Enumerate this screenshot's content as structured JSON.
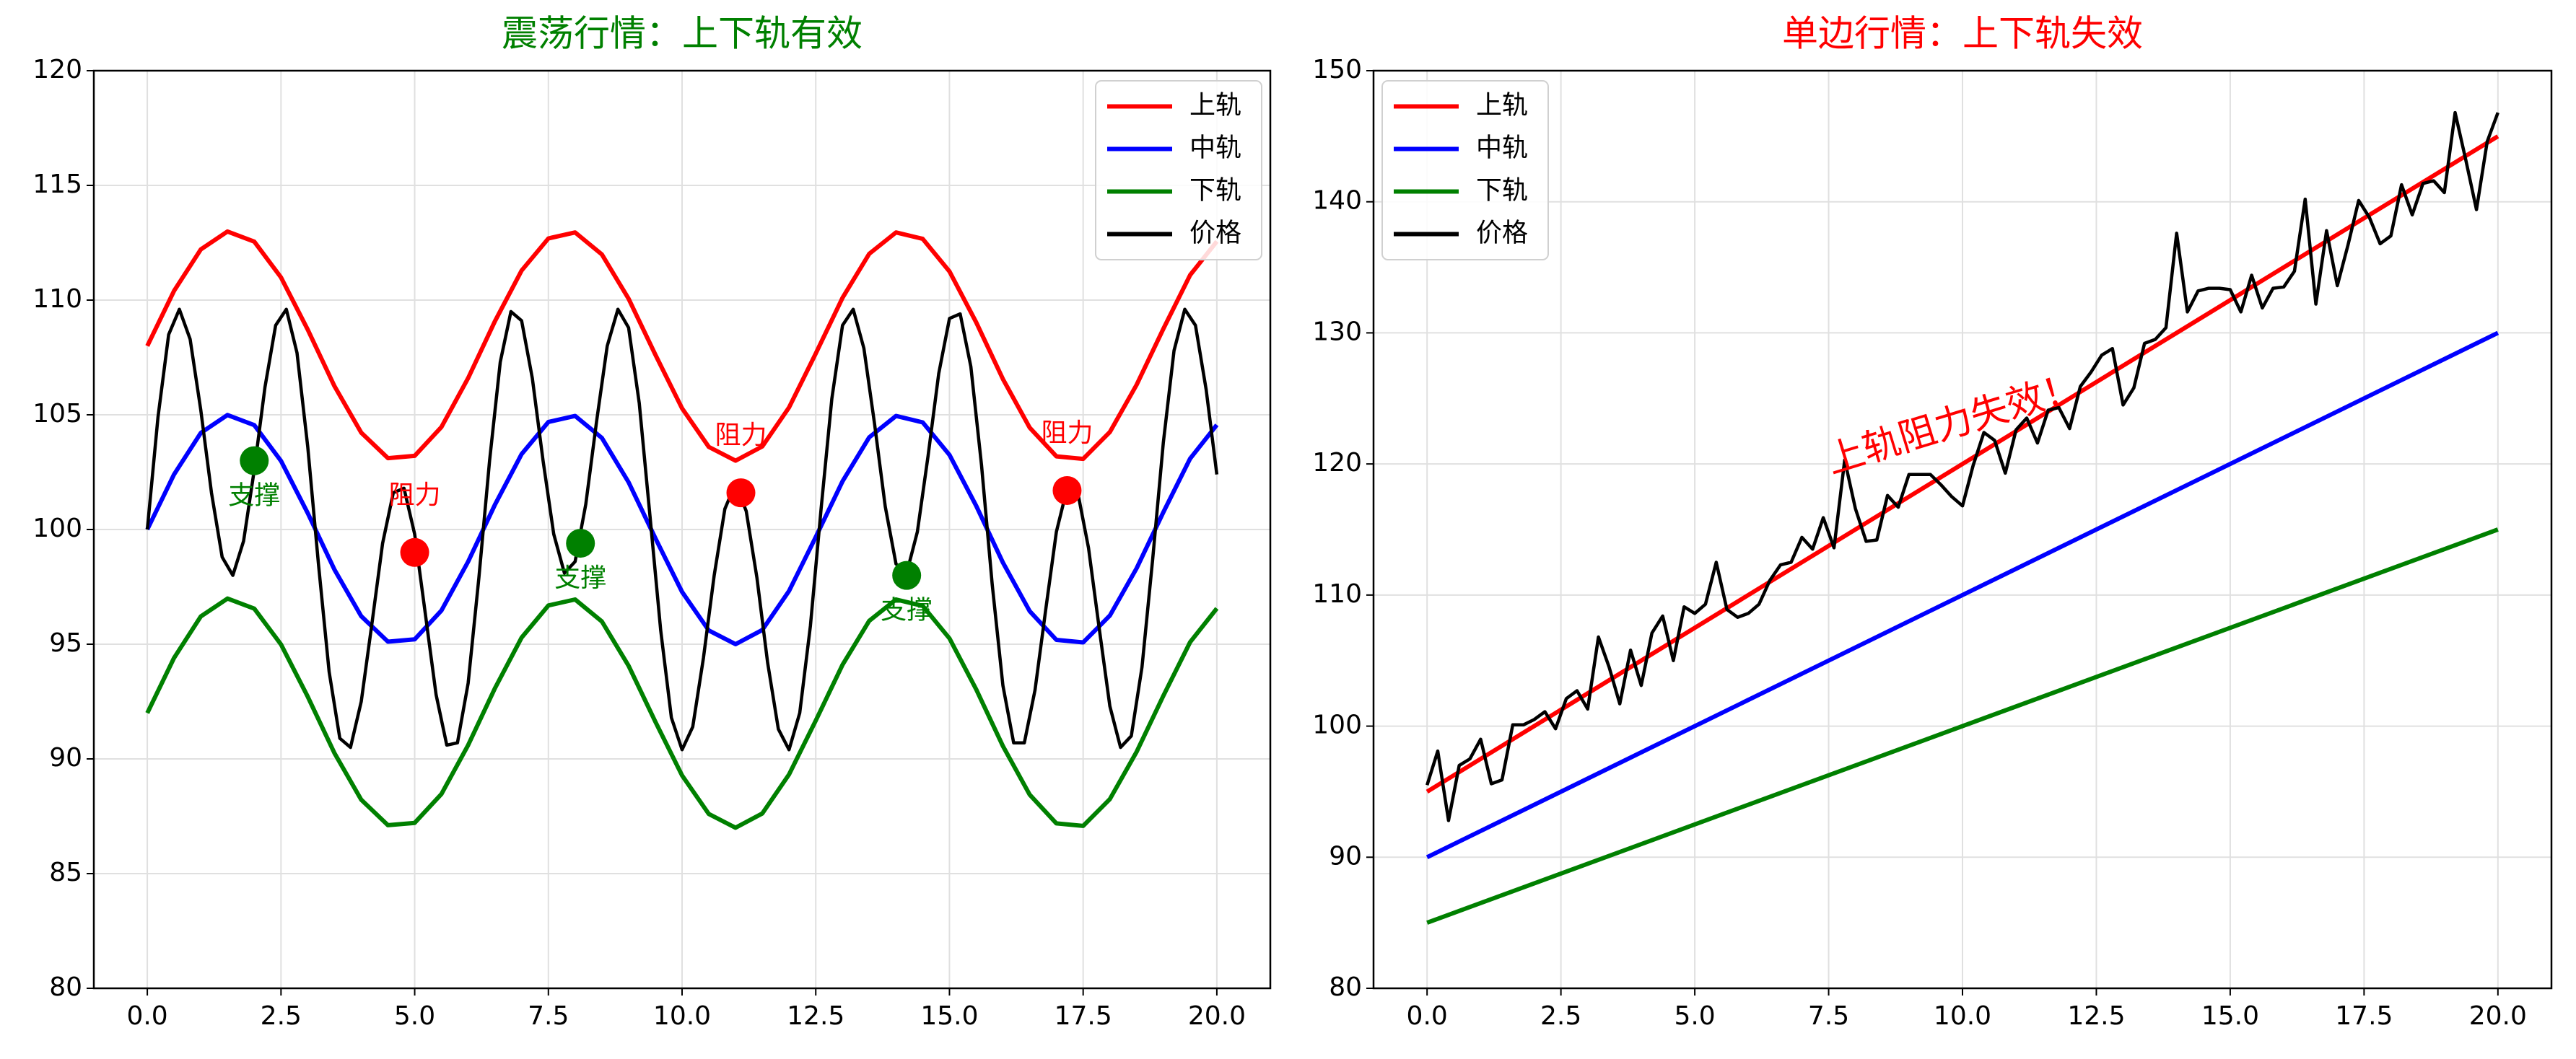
{
  "chart_data": [
    {
      "type": "line",
      "title": "震荡行情：上下轨有效",
      "title_color": "green",
      "xlim": [
        -1,
        21
      ],
      "ylim": [
        80,
        120
      ],
      "xticks": [
        {
          "value": 0,
          "label": "0.0"
        },
        {
          "value": 2.5,
          "label": "2.5"
        },
        {
          "value": 5,
          "label": "5.0"
        },
        {
          "value": 7.5,
          "label": "7.5"
        },
        {
          "value": 10,
          "label": "10.0"
        },
        {
          "value": 12.5,
          "label": "12.5"
        },
        {
          "value": 15,
          "label": "15.0"
        },
        {
          "value": 17.5,
          "label": "17.5"
        },
        {
          "value": 20,
          "label": "20.0"
        }
      ],
      "yticks": [
        80,
        85,
        90,
        95,
        100,
        105,
        110,
        115,
        120
      ],
      "grid": true,
      "legend": "upper right",
      "series": [
        {
          "name": "上轨",
          "color": "red",
          "x": [
            0,
            0.5,
            1,
            1.5,
            2,
            2.5,
            3,
            3.5,
            4,
            4.5,
            5,
            5.5,
            6,
            6.5,
            7,
            7.5,
            8,
            8.5,
            9,
            9.5,
            10,
            10.5,
            11,
            11.5,
            12,
            12.5,
            13,
            13.5,
            14,
            14.5,
            15,
            15.5,
            16,
            16.5,
            17,
            17.5,
            18,
            18.5,
            19,
            19.5,
            20
          ],
          "values": [
            108,
            110.4,
            112.21,
            112.99,
            112.55,
            110.99,
            108.71,
            106.25,
            104.22,
            103.11,
            103.21,
            104.47,
            106.6,
            109.08,
            111.29,
            112.69,
            112.95,
            111.99,
            110.06,
            107.62,
            105.28,
            103.6,
            103.0,
            103.62,
            105.32,
            107.67,
            110.1,
            112.02,
            112.95,
            112.67,
            111.25,
            109.03,
            106.56,
            104.44,
            103.19,
            103.08,
            104.25,
            106.31,
            108.75,
            111.09,
            112.56
          ]
        },
        {
          "name": "中轨",
          "color": "blue",
          "x": [
            0,
            0.5,
            1,
            1.5,
            2,
            2.5,
            3,
            3.5,
            4,
            4.5,
            5,
            5.5,
            6,
            6.5,
            7,
            7.5,
            8,
            8.5,
            9,
            9.5,
            10,
            10.5,
            11,
            11.5,
            12,
            12.5,
            13,
            13.5,
            14,
            14.5,
            15,
            15.5,
            16,
            16.5,
            17,
            17.5,
            18,
            18.5,
            19,
            19.5,
            20
          ],
          "values": [
            100,
            102.4,
            104.21,
            104.99,
            104.55,
            102.99,
            100.71,
            98.25,
            96.22,
            95.11,
            95.21,
            96.47,
            98.6,
            101.08,
            103.29,
            104.69,
            104.95,
            103.99,
            102.06,
            99.62,
            97.28,
            95.6,
            95.0,
            95.62,
            97.32,
            99.67,
            102.1,
            104.02,
            104.95,
            104.67,
            103.25,
            101.03,
            98.56,
            96.44,
            95.19,
            95.08,
            96.25,
            98.31,
            100.75,
            103.09,
            104.56
          ]
        },
        {
          "name": "下轨",
          "color": "green",
          "x": [
            0,
            0.5,
            1,
            1.5,
            2,
            2.5,
            3,
            3.5,
            4,
            4.5,
            5,
            5.5,
            6,
            6.5,
            7,
            7.5,
            8,
            8.5,
            9,
            9.5,
            10,
            10.5,
            11,
            11.5,
            12,
            12.5,
            13,
            13.5,
            14,
            14.5,
            15,
            15.5,
            16,
            16.5,
            17,
            17.5,
            18,
            18.5,
            19,
            19.5,
            20
          ],
          "values": [
            92,
            94.4,
            96.21,
            96.99,
            96.55,
            94.99,
            92.71,
            90.25,
            88.22,
            87.11,
            87.21,
            88.47,
            90.6,
            93.08,
            95.29,
            96.69,
            96.95,
            95.99,
            94.06,
            91.62,
            89.28,
            87.6,
            87.0,
            87.62,
            89.32,
            91.67,
            94.1,
            96.02,
            96.95,
            96.67,
            95.25,
            93.03,
            90.56,
            88.44,
            87.19,
            87.08,
            88.25,
            90.31,
            92.75,
            95.09,
            96.56
          ]
        },
        {
          "name": "价格",
          "color": "black",
          "x": [
            0,
            0.2,
            0.4,
            0.6,
            0.8,
            1,
            1.2,
            1.4,
            1.6,
            1.8,
            2,
            2.2,
            2.4,
            2.6,
            2.8,
            3,
            3.2,
            3.4,
            3.6,
            3.8,
            4,
            4.2,
            4.4,
            4.6,
            4.8,
            5,
            5.2,
            5.4,
            5.6,
            5.8,
            6,
            6.2,
            6.4,
            6.6,
            6.8,
            7,
            7.2,
            7.4,
            7.6,
            7.8,
            8,
            8.2,
            8.4,
            8.6,
            8.8,
            9,
            9.2,
            9.4,
            9.6,
            9.8,
            10,
            10.2,
            10.4,
            10.6,
            10.8,
            11,
            11.2,
            11.4,
            11.6,
            11.8,
            12,
            12.2,
            12.4,
            12.6,
            12.8,
            13,
            13.2,
            13.4,
            13.6,
            13.8,
            14,
            14.2,
            14.4,
            14.6,
            14.8,
            15,
            15.2,
            15.4,
            15.6,
            15.8,
            16,
            16.2,
            16.4,
            16.6,
            16.8,
            17,
            17.2,
            17.4,
            17.6,
            17.8,
            18,
            18.2,
            18.4,
            18.6,
            18.8,
            19,
            19.2,
            19.4,
            19.6,
            19.8,
            20
          ],
          "values": [
            100,
            104.9,
            108.5,
            109.6,
            108.3,
            105.2,
            101.6,
            98.8,
            98.0,
            99.5,
            102.6,
            106.2,
            108.9,
            109.6,
            107.7,
            103.6,
            98.5,
            93.8,
            90.9,
            90.5,
            92.5,
            95.9,
            99.4,
            101.6,
            101.8,
            99.8,
            96.3,
            92.8,
            90.6,
            90.7,
            93.3,
            97.9,
            103.0,
            107.3,
            109.5,
            109.1,
            106.6,
            103.0,
            99.8,
            98.1,
            98.6,
            101.1,
            104.7,
            108.0,
            109.6,
            108.8,
            105.5,
            100.6,
            95.6,
            91.8,
            90.4,
            91.4,
            94.4,
            98.0,
            100.9,
            102.0,
            100.8,
            97.9,
            94.2,
            91.3,
            90.4,
            92.0,
            95.8,
            100.9,
            105.7,
            108.9,
            109.6,
            107.9,
            104.6,
            101.0,
            98.5,
            98.1,
            99.9,
            103.2,
            106.8,
            109.2,
            109.4,
            107.1,
            102.8,
            97.6,
            93.2,
            90.7,
            90.7,
            93.0,
            96.5,
            99.9,
            101.8,
            101.6,
            99.2,
            95.7,
            92.3,
            90.5,
            91.0,
            94.0,
            98.7,
            103.8,
            107.8,
            109.6,
            108.9,
            106.1,
            102.4
          ]
        }
      ],
      "markers": [
        {
          "label": "阻力",
          "x": 5.0,
          "y": 99.0,
          "color": "red"
        },
        {
          "label": "阻力",
          "x": 11.1,
          "y": 101.6,
          "color": "red"
        },
        {
          "label": "阻力",
          "x": 17.2,
          "y": 101.7,
          "color": "red"
        },
        {
          "label": "支撑",
          "x": 2.0,
          "y": 103.0,
          "color": "green"
        },
        {
          "label": "支撑",
          "x": 8.1,
          "y": 99.4,
          "color": "green"
        },
        {
          "label": "支撑",
          "x": 14.2,
          "y": 98.0,
          "color": "green"
        }
      ]
    },
    {
      "type": "line",
      "title": "单边行情：上下轨失效",
      "title_color": "red",
      "xlim": [
        -1,
        21
      ],
      "ylim": [
        80,
        150
      ],
      "xticks": [
        {
          "value": 0,
          "label": "0.0"
        },
        {
          "value": 2.5,
          "label": "2.5"
        },
        {
          "value": 5,
          "label": "5.0"
        },
        {
          "value": 7.5,
          "label": "7.5"
        },
        {
          "value": 10,
          "label": "10.0"
        },
        {
          "value": 12.5,
          "label": "12.5"
        },
        {
          "value": 15,
          "label": "15.0"
        },
        {
          "value": 17.5,
          "label": "17.5"
        },
        {
          "value": 20,
          "label": "20.0"
        }
      ],
      "yticks": [
        80,
        90,
        100,
        110,
        120,
        130,
        140,
        150
      ],
      "grid": true,
      "legend": "upper left",
      "annotation": {
        "text": "上轨阻力失效！",
        "color": "red"
      },
      "series": [
        {
          "name": "上轨",
          "color": "red",
          "x": [
            0,
            20
          ],
          "values": [
            95,
            145
          ]
        },
        {
          "name": "中轨",
          "color": "blue",
          "x": [
            0,
            20
          ],
          "values": [
            90,
            130
          ]
        },
        {
          "name": "下轨",
          "color": "green",
          "x": [
            0,
            20
          ],
          "values": [
            85,
            115
          ]
        },
        {
          "name": "价格",
          "color": "black",
          "x": [
            0,
            0.2,
            0.4,
            0.6,
            0.8,
            1,
            1.2,
            1.4,
            1.6,
            1.8,
            2,
            2.2,
            2.4,
            2.6,
            2.8,
            3,
            3.2,
            3.4,
            3.6,
            3.8,
            4,
            4.2,
            4.4,
            4.6,
            4.8,
            5,
            5.2,
            5.4,
            5.6,
            5.8,
            6,
            6.2,
            6.4,
            6.6,
            6.8,
            7,
            7.2,
            7.4,
            7.6,
            7.8,
            8,
            8.2,
            8.4,
            8.6,
            8.8,
            9,
            9.2,
            9.4,
            9.6,
            9.8,
            10,
            10.2,
            10.4,
            10.6,
            10.8,
            11,
            11.2,
            11.4,
            11.6,
            11.8,
            12,
            12.2,
            12.4,
            12.6,
            12.8,
            13,
            13.2,
            13.4,
            13.6,
            13.8,
            14,
            14.2,
            14.4,
            14.6,
            14.8,
            15,
            15.2,
            15.4,
            15.6,
            15.8,
            16,
            16.2,
            16.4,
            16.6,
            16.8,
            17,
            17.2,
            17.4,
            17.6,
            17.8,
            18,
            18.2,
            18.4,
            18.6,
            18.8,
            19,
            19.2,
            19.4,
            19.6,
            19.8,
            20
          ],
          "values": [
            95.5,
            98.1,
            92.8,
            97.0,
            97.5,
            99.0,
            95.6,
            95.9,
            100.1,
            100.1,
            100.5,
            101.1,
            99.8,
            102.1,
            102.7,
            101.3,
            106.8,
            104.5,
            101.7,
            105.8,
            103.1,
            107.1,
            108.4,
            105.0,
            109.1,
            108.6,
            109.3,
            112.5,
            108.9,
            108.3,
            108.6,
            109.3,
            111.1,
            112.3,
            112.5,
            114.4,
            113.5,
            115.9,
            113.6,
            120.3,
            116.6,
            114.1,
            114.2,
            117.6,
            116.7,
            119.2,
            119.2,
            119.2,
            118.4,
            117.5,
            116.8,
            119.9,
            122.4,
            121.8,
            119.3,
            122.6,
            123.5,
            121.6,
            124.1,
            124.3,
            122.7,
            125.9,
            127.0,
            128.3,
            128.8,
            124.5,
            125.8,
            129.2,
            129.5,
            130.4,
            137.6,
            131.6,
            133.2,
            133.4,
            133.4,
            133.3,
            131.6,
            134.4,
            131.9,
            133.4,
            133.5,
            134.7,
            140.2,
            132.2,
            137.8,
            133.6,
            136.7,
            140.1,
            138.8,
            136.8,
            137.4,
            141.3,
            139.0,
            141.4,
            141.6,
            140.7,
            146.8,
            143.2,
            139.4,
            144.6,
            146.8
          ]
        }
      ]
    }
  ]
}
